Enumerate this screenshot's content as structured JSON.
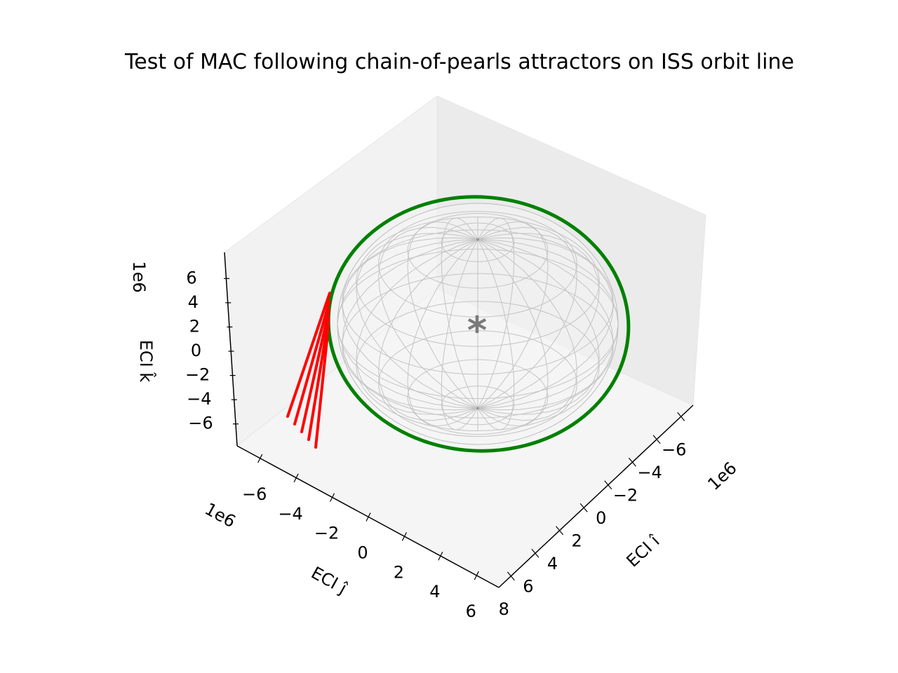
{
  "chart_data": {
    "type": "line3d",
    "title": "Test of MAC following chain-of-pearls attractors on ISS orbit line",
    "x_axis": {
      "label": "ECI î",
      "offset_text": "1e6",
      "ticks": [
        "−6",
        "−4",
        "−2",
        "0",
        "2",
        "4",
        "6",
        "8"
      ],
      "range": [
        -7,
        8.5
      ]
    },
    "y_axis": {
      "label": "ECI ĵ",
      "offset_text": "1e6",
      "ticks": [
        "−6",
        "−4",
        "−2",
        "0",
        "2",
        "4",
        "6"
      ],
      "range": [
        -7,
        7
      ]
    },
    "z_axis": {
      "label": "ECI k̂",
      "offset_text": "1e6",
      "ticks": [
        "−6",
        "−4",
        "−2",
        "0",
        "2",
        "4",
        "6"
      ],
      "range": [
        -7,
        7
      ]
    },
    "marker_symbol": "*",
    "series": [
      {
        "kind": "orbit",
        "color": "#008000",
        "description_shape": "closed ring around the sphere"
      },
      {
        "kind": "sphere-wireframe",
        "color": "#999999"
      },
      {
        "kind": "trajectories",
        "color": "#ff0000",
        "count": 5
      }
    ],
    "grid": false
  }
}
